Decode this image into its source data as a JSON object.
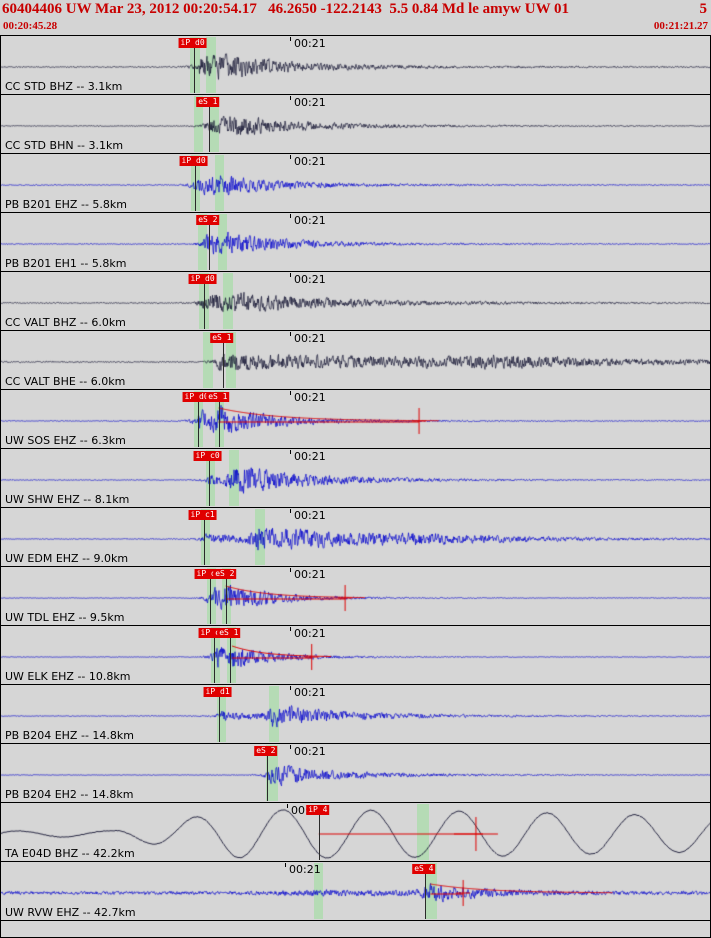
{
  "header": {
    "title": "60404406 UW Mar 23, 2012 00:20:54.17   46.2650 -122.2143  5.5 0.84 Md le amyw UW 01",
    "right_flag": "5",
    "window_start": "00:20:45.28",
    "window_end": "00:21:21.27"
  },
  "colors": {
    "bg": "#d4d4d4",
    "blue": "#0000cd",
    "black": "#141432",
    "green_band": "#b5dbb5",
    "flag_bg": "#e00000",
    "flag_text": "#ffffff",
    "red": "#dd0000",
    "header_red": "#c80000"
  },
  "traces": [
    {
      "label": "CC STD BHZ -- 3.1km",
      "time_label": "00:21",
      "time_x": 0.412,
      "color": "black",
      "bands": [
        [
          0.266,
          0.014
        ],
        [
          0.288,
          0.014
        ]
      ],
      "picks": [
        {
          "label": "iP d0",
          "x": 0.272
        }
      ],
      "wave": {
        "type": "hf",
        "noise": 0.7,
        "seed": 11,
        "bursts": [
          [
            0.281,
            13,
            55
          ],
          [
            0.305,
            7,
            110
          ]
        ]
      }
    },
    {
      "label": "CC STD BHN -- 3.1km",
      "time_label": "00:21",
      "time_x": 0.412,
      "color": "black",
      "bands": [
        [
          0.272,
          0.013
        ],
        [
          0.294,
          0.013
        ]
      ],
      "picks": [
        {
          "label": "eS 1",
          "x": 0.292
        }
      ],
      "wave": {
        "type": "hf",
        "noise": 0.55,
        "seed": 22,
        "bursts": [
          [
            0.296,
            11,
            60
          ],
          [
            0.32,
            6,
            110
          ]
        ]
      }
    },
    {
      "label": "PB B201 EHZ -- 5.8km",
      "time_label": "00:21",
      "time_x": 0.412,
      "color": "blue",
      "bands": [
        [
          0.267,
          0.013
        ],
        [
          0.301,
          0.013
        ]
      ],
      "picks": [
        {
          "label": "iP d0",
          "x": 0.273
        }
      ],
      "wave": {
        "type": "hf",
        "noise": 0.6,
        "seed": 33,
        "bursts": [
          [
            0.277,
            13,
            50
          ],
          [
            0.308,
            5,
            100
          ]
        ]
      }
    },
    {
      "label": "PB B201 EH1 -- 5.8km",
      "time_label": "00:21",
      "time_x": 0.412,
      "color": "blue",
      "bands": [
        [
          0.277,
          0.013
        ],
        [
          0.305,
          0.013
        ]
      ],
      "picks": [
        {
          "label": "eS 2",
          "x": 0.293
        }
      ],
      "wave": {
        "type": "hf",
        "noise": 0.6,
        "seed": 44,
        "bursts": [
          [
            0.291,
            12,
            55
          ],
          [
            0.315,
            5,
            100
          ]
        ]
      }
    },
    {
      "label": "CC VALT BHZ -- 6.0km",
      "time_label": "00:21",
      "time_x": 0.412,
      "color": "black",
      "bands": [
        [
          0.279,
          0.014
        ],
        [
          0.312,
          0.014
        ]
      ],
      "picks": [
        {
          "label": "iP d0",
          "x": 0.285
        }
      ],
      "wave": {
        "type": "hf",
        "noise": 0.7,
        "seed": 55,
        "bursts": [
          [
            0.288,
            12,
            75
          ],
          [
            0.33,
            6,
            140
          ]
        ]
      }
    },
    {
      "label": "CC VALT BHE -- 6.0km",
      "time_label": "00:21",
      "time_x": 0.412,
      "color": "black",
      "bands": [
        [
          0.284,
          0.014
        ],
        [
          0.316,
          0.014
        ]
      ],
      "picks": [
        {
          "label": "eS 1",
          "x": 0.312
        }
      ],
      "wave": {
        "type": "hf",
        "noise": 0.8,
        "seed": 66,
        "bursts": [
          [
            0.308,
            10,
            280
          ],
          [
            0.7,
            5,
            100,
            60
          ]
        ]
      }
    },
    {
      "label": "UW SOS EHZ -- 6.3km",
      "time_label": "00:21",
      "time_x": 0.412,
      "color": "blue",
      "bands": [
        [
          0.271,
          0.013
        ],
        [
          0.301,
          0.013
        ]
      ],
      "picks": [
        {
          "label": "iP d0",
          "x": 0.277
        },
        {
          "label": "eS 1",
          "x": 0.306
        }
      ],
      "wave": {
        "type": "hf",
        "noise": 0.55,
        "seed": 77,
        "bursts": [
          [
            0.28,
            14,
            45
          ],
          [
            0.309,
            9,
            75
          ]
        ]
      },
      "coda": {
        "cross_x": 0.588,
        "env_from": 0.306,
        "env_amp": 13,
        "env_decay": 58
      }
    },
    {
      "label": "UW SHW EHZ -- 8.1km",
      "time_label": "00:21",
      "time_x": 0.412,
      "color": "blue",
      "bands": [
        [
          0.288,
          0.013
        ],
        [
          0.321,
          0.014
        ]
      ],
      "picks": [
        {
          "label": "iP c0",
          "x": 0.292
        }
      ],
      "wave": {
        "type": "hf",
        "noise": 0.55,
        "seed": 88,
        "bursts": [
          [
            0.295,
            6,
            70
          ],
          [
            0.326,
            14,
            85
          ]
        ]
      }
    },
    {
      "label": "UW EDM EHZ -- 9.0km",
      "time_label": "00:21",
      "time_x": 0.412,
      "color": "blue",
      "bands": [
        [
          0.281,
          0.013
        ],
        [
          0.357,
          0.014
        ]
      ],
      "picks": [
        {
          "label": "iP c1",
          "x": 0.285
        }
      ],
      "wave": {
        "type": "hf",
        "noise": 0.5,
        "seed": 99,
        "bursts": [
          [
            0.289,
            6,
            80
          ],
          [
            0.362,
            13,
            100
          ],
          [
            0.58,
            5,
            130,
            60
          ]
        ]
      }
    },
    {
      "label": "UW TDL EHZ -- 9.5km",
      "time_label": "00:21",
      "time_x": 0.412,
      "color": "blue",
      "bands": [
        [
          0.29,
          0.012
        ],
        [
          0.311,
          0.012
        ]
      ],
      "picks": [
        {
          "label": "iP d0",
          "x": 0.294
        },
        {
          "label": "eS 2",
          "x": 0.316
        }
      ],
      "wave": {
        "type": "hf",
        "noise": 0.45,
        "seed": 110,
        "bursts": [
          [
            0.297,
            13,
            40
          ],
          [
            0.319,
            9,
            55
          ]
        ]
      },
      "coda": {
        "cross_x": 0.484,
        "env_from": 0.316,
        "env_amp": 12,
        "env_decay": 42
      }
    },
    {
      "label": "UW ELK EHZ -- 10.8km",
      "time_label": "00:21",
      "time_x": 0.412,
      "color": "blue",
      "bands": [
        [
          0.296,
          0.012
        ],
        [
          0.318,
          0.012
        ]
      ],
      "picks": [
        {
          "label": "iP c0",
          "x": 0.3
        },
        {
          "label": "eS 1",
          "x": 0.322
        }
      ],
      "wave": {
        "type": "hf",
        "noise": 0.45,
        "seed": 121,
        "bursts": [
          [
            0.303,
            12,
            38
          ],
          [
            0.325,
            8,
            50
          ]
        ]
      },
      "coda": {
        "cross_x": 0.437,
        "env_from": 0.325,
        "env_amp": 11,
        "env_decay": 32
      }
    },
    {
      "label": "PB B204 EHZ -- 14.8km",
      "time_label": "00:21",
      "time_x": 0.412,
      "color": "blue",
      "bands": [
        [
          0.304,
          0.012
        ],
        [
          0.377,
          0.014
        ]
      ],
      "picks": [
        {
          "label": "iP d1",
          "x": 0.307
        }
      ],
      "wave": {
        "type": "hf",
        "noise": 0.5,
        "seed": 132,
        "bursts": [
          [
            0.31,
            6,
            55
          ],
          [
            0.382,
            12,
            85
          ]
        ]
      }
    },
    {
      "label": "PB B204 EH2 -- 14.8km",
      "time_label": "00:21",
      "time_x": 0.412,
      "color": "blue",
      "bands": [
        [
          0.373,
          0.017
        ]
      ],
      "picks": [
        {
          "label": "eS 2",
          "x": 0.374
        }
      ],
      "wave": {
        "type": "hf",
        "noise": 0.45,
        "seed": 143,
        "bursts": [
          [
            0.38,
            13,
            75
          ]
        ]
      }
    },
    {
      "label": "TA E04D BHZ -- 42.2km",
      "time_label": "00:21",
      "time_x": 0.408,
      "color": "black",
      "bands": [
        [
          0.585,
          0.017
        ]
      ],
      "picks": [
        {
          "label": "iP 4",
          "x": 0.447
        }
      ],
      "wave": {
        "type": "lp",
        "base": 3,
        "amp": 20,
        "ramp_start": 0.15,
        "ramp_len": 0.18,
        "wavelength": 88,
        "phase": 40,
        "mod": 190,
        "noise": 0.4,
        "seed": 154
      },
      "coda": {
        "cross_x": 0.668,
        "line_from": 0.447,
        "line_to": 0.678,
        "big": true
      }
    },
    {
      "label": "UW RVW EHZ -- 42.7km",
      "time_label": "00:21",
      "time_x": 0.405,
      "color": "blue",
      "bands": [
        [
          0.44,
          0.013
        ],
        [
          0.598,
          0.016
        ]
      ],
      "picks": [
        {
          "label": "eS 4",
          "x": 0.597
        }
      ],
      "wave": {
        "type": "hf",
        "noise": 2.0,
        "seed": 165,
        "bursts": [
          [
            0.45,
            2.5,
            120,
            40
          ],
          [
            0.604,
            9,
            55,
            8
          ]
        ]
      },
      "coda": {
        "cross_x": 0.65,
        "env_from": 0.604,
        "env_amp": 9,
        "env_decay": 55,
        "env_to": 0.86
      }
    }
  ]
}
